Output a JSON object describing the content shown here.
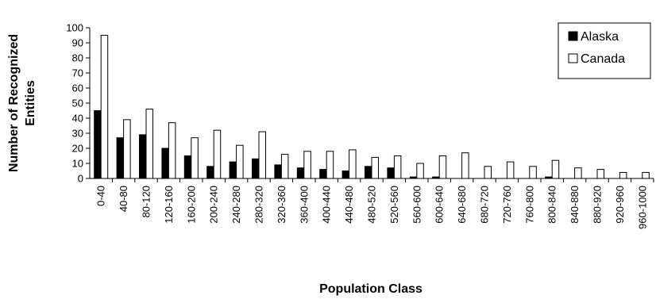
{
  "chart_data": {
    "type": "bar",
    "xlabel": "Population Class",
    "ylabel_lines": [
      "Number of Recognized",
      "Entities"
    ],
    "ylim": [
      0,
      100
    ],
    "yticks": [
      0,
      10,
      20,
      30,
      40,
      50,
      60,
      70,
      80,
      90,
      100
    ],
    "grid": false,
    "legend_position": "top-right",
    "categories": [
      "0-40",
      "40-80",
      "80-120",
      "120-160",
      "160-200",
      "200-240",
      "240-280",
      "280-320",
      "320-360",
      "360-400",
      "400-440",
      "440-480",
      "480-520",
      "520-560",
      "560-600",
      "600-640",
      "640-680",
      "680-720",
      "720-760",
      "760-800",
      "800-840",
      "840-880",
      "880-920",
      "920-960",
      "960-1000"
    ],
    "series": [
      {
        "name": "Alaska",
        "color": "#000000",
        "values": [
          45,
          27,
          29,
          20,
          15,
          8,
          11,
          13,
          9,
          7,
          6,
          5,
          8,
          7,
          1,
          1,
          0,
          0,
          0,
          0,
          1,
          0,
          0,
          0,
          0
        ]
      },
      {
        "name": "Canada",
        "color": "#ffffff",
        "values": [
          95,
          39,
          46,
          37,
          27,
          32,
          22,
          31,
          16,
          18,
          18,
          19,
          14,
          15,
          10,
          15,
          17,
          8,
          11,
          8,
          12,
          7,
          6,
          4,
          4
        ]
      }
    ]
  }
}
